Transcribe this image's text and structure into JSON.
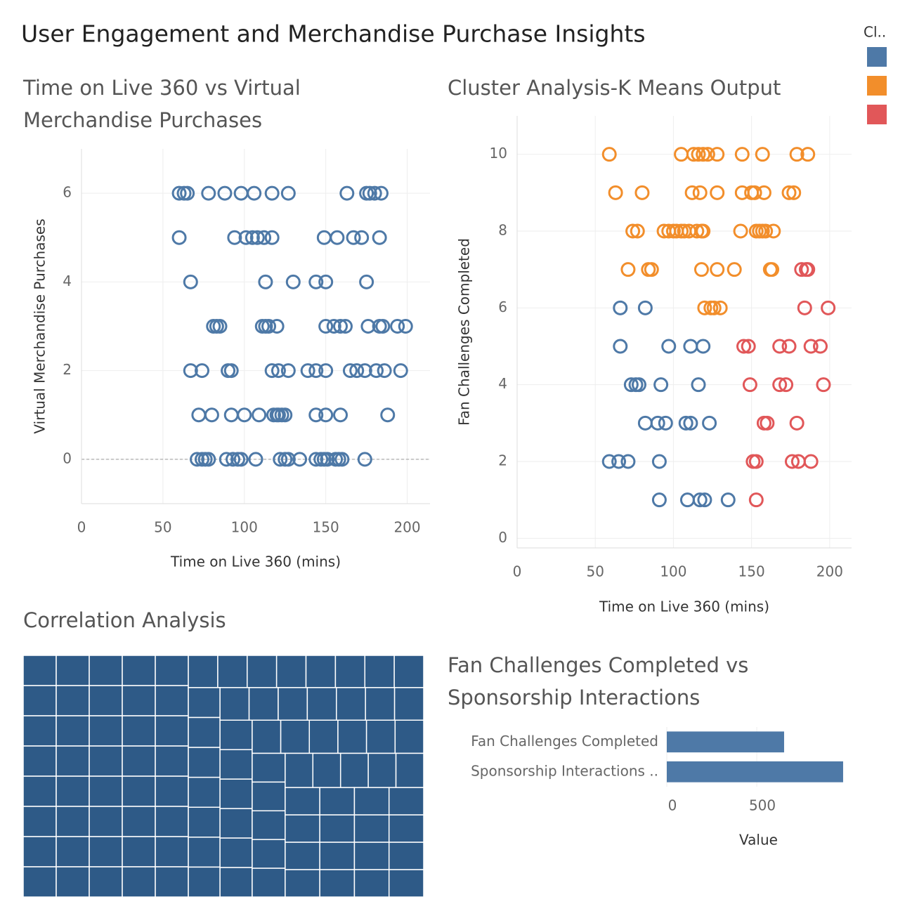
{
  "title": "User Engagement and Merchandise Purchase Insights",
  "legend": {
    "title": "Cl..",
    "position": "top-right"
  },
  "chart_data": [
    {
      "type": "scatter",
      "title": [
        "Time on Live 360 vs Virtual",
        "Merchandise Purchases"
      ],
      "x_label": "Time on Live 360 (mins)",
      "y_label": "Virtual Merchandise Purchases",
      "xlim": [
        0,
        214
      ],
      "ylim": [
        -1,
        7
      ],
      "xticks": [
        0,
        50,
        100,
        150,
        200
      ],
      "yticks": [
        0,
        2,
        4,
        6
      ],
      "grid": true,
      "zero_line": true,
      "series": [
        {
          "color": "#4e79a7",
          "x": [
            60,
            63,
            65,
            78,
            88,
            98,
            106,
            117,
            127,
            163,
            175,
            177,
            180,
            184,
            60,
            94,
            101,
            105,
            108,
            112,
            117,
            149,
            157,
            167,
            172,
            183,
            67,
            113,
            130,
            144,
            150,
            175,
            81,
            83,
            85,
            111,
            113,
            115,
            120,
            150,
            155,
            159,
            162,
            176,
            183,
            185,
            194,
            199,
            67,
            74,
            90,
            92,
            117,
            121,
            127,
            139,
            144,
            150,
            165,
            169,
            174,
            181,
            186,
            196,
            72,
            80,
            92,
            100,
            109,
            118,
            120,
            121,
            123,
            125,
            144,
            150,
            159,
            188,
            71,
            74,
            76,
            78,
            89,
            93,
            96,
            98,
            107,
            122,
            125,
            127,
            134,
            144,
            147,
            149,
            151,
            156,
            158,
            160,
            174
          ],
          "values": [
            6,
            6,
            6,
            6,
            6,
            6,
            6,
            6,
            6,
            6,
            6,
            6,
            6,
            6,
            5,
            5,
            5,
            5,
            5,
            5,
            5,
            5,
            5,
            5,
            5,
            5,
            4,
            4,
            4,
            4,
            4,
            4,
            3,
            3,
            3,
            3,
            3,
            3,
            3,
            3,
            3,
            3,
            3,
            3,
            3,
            3,
            3,
            3,
            2,
            2,
            2,
            2,
            2,
            2,
            2,
            2,
            2,
            2,
            2,
            2,
            2,
            2,
            2,
            2,
            1,
            1,
            1,
            1,
            1,
            1,
            1,
            1,
            1,
            1,
            1,
            1,
            1,
            1,
            0,
            0,
            0,
            0,
            0,
            0,
            0,
            0,
            0,
            0,
            0,
            0,
            0,
            0,
            0,
            0,
            0,
            0,
            0,
            0,
            0
          ]
        }
      ]
    },
    {
      "type": "scatter",
      "title": [
        "Cluster Analysis-K Means Output"
      ],
      "x_label": "Time on Live 360 (mins)",
      "y_label": "Fan Challenges Completed",
      "xlim": [
        0,
        214
      ],
      "ylim": [
        -0.25,
        11
      ],
      "xticks": [
        0,
        50,
        100,
        150,
        200
      ],
      "yticks": [
        0,
        2,
        4,
        6,
        8,
        10
      ],
      "grid": true,
      "zero_line": false,
      "series": [
        {
          "color": "#4e79a7",
          "x": [
            66,
            82,
            66,
            97,
            111,
            119,
            73,
            76,
            78,
            92,
            116,
            82,
            90,
            95,
            108,
            111,
            123,
            59,
            65,
            71,
            91,
            91,
            109,
            117,
            120,
            135
          ],
          "values": [
            6,
            6,
            5,
            5,
            5,
            5,
            4,
            4,
            4,
            4,
            4,
            3,
            3,
            3,
            3,
            3,
            3,
            2,
            2,
            2,
            2,
            1,
            1,
            1,
            1,
            1
          ]
        },
        {
          "color": "#f28e2b",
          "x": [
            59,
            105,
            113,
            116,
            119,
            122,
            128,
            144,
            157,
            179,
            186,
            63,
            80,
            112,
            117,
            128,
            144,
            150,
            152,
            158,
            174,
            177,
            74,
            77,
            94,
            97,
            100,
            102,
            105,
            107,
            110,
            115,
            118,
            119,
            143,
            153,
            155,
            157,
            159,
            164,
            71,
            84,
            86,
            118,
            128,
            139,
            162,
            163,
            120,
            124,
            126,
            130
          ],
          "values": [
            10,
            10,
            10,
            10,
            10,
            10,
            10,
            10,
            10,
            10,
            10,
            9,
            9,
            9,
            9,
            9,
            9,
            9,
            9,
            9,
            9,
            9,
            8,
            8,
            8,
            8,
            8,
            8,
            8,
            8,
            8,
            8,
            8,
            8,
            8,
            8,
            8,
            8,
            8,
            8,
            7,
            7,
            7,
            7,
            7,
            7,
            7,
            7,
            6,
            6,
            6,
            6
          ]
        },
        {
          "color": "#e15759",
          "x": [
            182,
            185,
            186,
            184,
            199,
            145,
            148,
            168,
            174,
            188,
            194,
            149,
            168,
            172,
            196,
            158,
            160,
            179,
            151,
            153,
            176,
            180,
            188,
            153
          ],
          "values": [
            7,
            7,
            7,
            6,
            6,
            5,
            5,
            5,
            5,
            5,
            5,
            4,
            4,
            4,
            4,
            3,
            3,
            3,
            2,
            2,
            2,
            2,
            2,
            1
          ]
        }
      ]
    },
    {
      "type": "treemap",
      "title": [
        "Correlation Analysis"
      ],
      "color": "#2e5a87",
      "values": [
        20,
        20,
        20,
        20,
        20,
        20,
        20,
        20,
        20,
        20,
        20,
        20,
        20,
        20,
        20,
        20,
        20,
        20,
        20,
        20,
        20,
        20,
        20,
        20,
        20,
        20,
        20,
        20,
        20,
        20,
        20,
        20,
        20,
        20,
        20,
        20,
        20,
        20,
        20,
        20,
        19,
        19,
        19,
        19,
        19,
        19,
        19,
        19,
        19,
        19,
        19,
        19,
        19,
        19,
        19,
        19,
        19,
        19,
        19,
        19,
        19,
        19,
        19,
        19,
        19,
        19,
        19,
        19,
        19,
        19,
        19,
        19,
        19,
        19,
        19,
        19,
        19,
        19,
        19,
        19,
        19,
        19,
        19,
        19,
        19,
        19,
        19,
        19,
        19,
        19,
        19,
        19,
        19,
        19,
        19,
        19,
        19,
        19,
        19,
        19
      ]
    },
    {
      "type": "bar",
      "orientation": "horizontal",
      "title": [
        "Fan Challenges Completed vs",
        "Sponsorship Interactions"
      ],
      "x_label": "Value",
      "color": "#4e79a7",
      "categories": [
        "Fan Challenges Completed",
        "Sponsorship Interactions .."
      ],
      "values": [
        652,
        980
      ],
      "xlim": [
        0,
        1027
      ],
      "xticks": [
        0,
        500
      ],
      "grid": true
    }
  ]
}
